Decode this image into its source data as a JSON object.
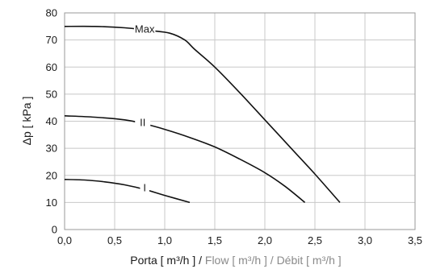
{
  "chart_data": {
    "type": "line",
    "title": "",
    "xlabel": "Porta [ m³/h ] / Flow [ m³/h ] / Débit [ m³/h ]",
    "xlabel_parts": [
      {
        "text": "Porta  [ m³/h ]",
        "muted": false
      },
      {
        "text": " / ",
        "muted": false
      },
      {
        "text": "Flow  [ m³/h ] / Débit [ m³/h ]",
        "muted": true
      }
    ],
    "ylabel": "Δp  [ kPa ]",
    "xlim": [
      0,
      3.5
    ],
    "ylim": [
      0,
      80
    ],
    "x_ticks": [
      0,
      0.5,
      1.0,
      1.5,
      2.0,
      2.5,
      3.0,
      3.5
    ],
    "x_tick_labels": [
      "0,0",
      "0,5",
      "1,0",
      "1,5",
      "2,0",
      "2,5",
      "3,0",
      "3,5"
    ],
    "y_ticks": [
      0,
      10,
      20,
      30,
      40,
      50,
      60,
      70,
      80
    ],
    "y_tick_labels": [
      "0",
      "10",
      "20",
      "30",
      "40",
      "50",
      "60",
      "70",
      "80"
    ],
    "grid": true,
    "series": [
      {
        "name": "Max",
        "x": [
          0.0,
          0.3,
          0.6,
          0.85,
          1.05,
          1.2,
          1.3,
          1.5,
          1.75,
          2.0,
          2.25,
          2.5,
          2.75
        ],
        "y": [
          75,
          75,
          74.5,
          73.5,
          72.5,
          70,
          66.5,
          60,
          50.5,
          40.5,
          30.5,
          20.5,
          10
        ],
        "label": "Max",
        "label_at": {
          "x": 0.8,
          "y": 74
        }
      },
      {
        "name": "II",
        "x": [
          0.0,
          0.3,
          0.6,
          0.8,
          1.0,
          1.25,
          1.5,
          1.75,
          2.0,
          2.2,
          2.4
        ],
        "y": [
          42,
          41.5,
          40.5,
          39,
          37,
          34,
          30.5,
          26,
          21,
          16,
          10
        ],
        "label": "II",
        "label_at": {
          "x": 0.78,
          "y": 39.5
        }
      },
      {
        "name": "I",
        "x": [
          0.0,
          0.2,
          0.4,
          0.6,
          0.8,
          1.0,
          1.25
        ],
        "y": [
          18.5,
          18.3,
          17.6,
          16.5,
          14.8,
          12.6,
          10
        ],
        "label": "I",
        "label_at": {
          "x": 0.8,
          "y": 15.5
        }
      }
    ]
  }
}
